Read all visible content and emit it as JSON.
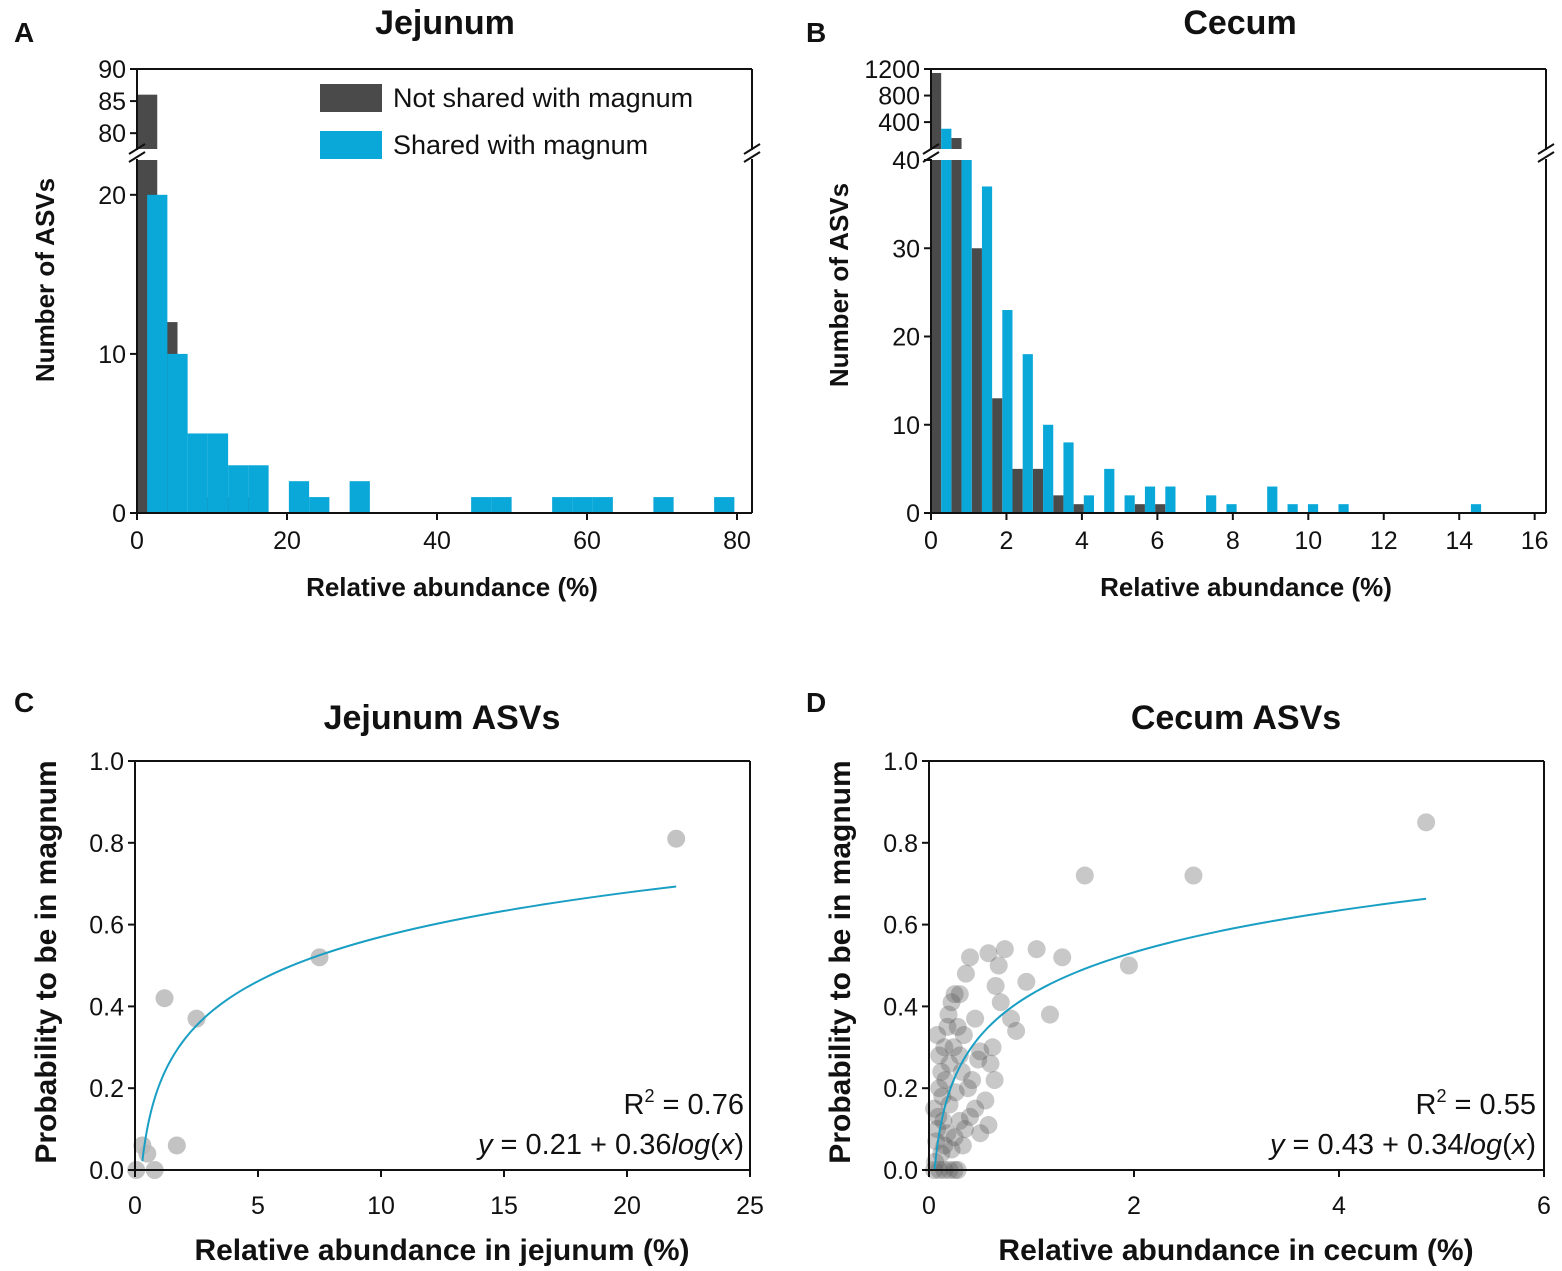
{
  "colors": {
    "not_shared": "#4a4a4a",
    "shared": "#0aa8d8",
    "fit_line": "#1a9fc4",
    "point_light": "#b8b8b8",
    "point_dark": "#555555"
  },
  "chart_data": [
    {
      "panel": "A",
      "type": "bar",
      "title": "Jejunum",
      "xlabel": "Relative abundance (%)",
      "ylabel": "Number of ASVs",
      "xlim": [
        0,
        82
      ],
      "xticks": [
        "0",
        "20",
        "40",
        "60",
        "80"
      ],
      "xtick_values": [
        0,
        20,
        40,
        60,
        80
      ],
      "ylim_lower": [
        0,
        22
      ],
      "ylim_upper": [
        78,
        90
      ],
      "yticks_lower": [
        "0",
        "10",
        "20"
      ],
      "yticks_lower_values": [
        0,
        10,
        20
      ],
      "yticks_upper": [
        "80",
        "85",
        "90"
      ],
      "yticks_upper_values": [
        80,
        85,
        90
      ],
      "bin_width": 2.7,
      "legend": [
        "Not shared with magnum",
        "Shared with magnum"
      ],
      "series": [
        {
          "name": "Not shared with magnum",
          "x": [
            0,
            2.7,
            8.1,
            10.8,
            13.5
          ],
          "values": [
            86,
            12,
            1,
            1,
            1
          ]
        },
        {
          "name": "Shared with magnum",
          "x": [
            1.35,
            4.05,
            6.75,
            9.45,
            12.15,
            14.85,
            20.25,
            22.95,
            28.35,
            44.55,
            47.25,
            55.35,
            58.05,
            60.75,
            68.85,
            76.95
          ],
          "values": [
            20,
            10,
            5,
            5,
            3,
            3,
            2,
            1,
            2,
            1,
            1,
            1,
            1,
            1,
            1,
            1
          ]
        }
      ]
    },
    {
      "panel": "B",
      "type": "bar",
      "title": "Cecum",
      "xlabel": "Relative abundance (%)",
      "ylabel": "Number of ASVs",
      "xlim": [
        0,
        16.3
      ],
      "xticks": [
        "0",
        "2",
        "4",
        "6",
        "8",
        "10",
        "12",
        "14",
        "16"
      ],
      "xtick_values": [
        0,
        2,
        4,
        6,
        8,
        10,
        12,
        14,
        16
      ],
      "ylim_lower": [
        0,
        40
      ],
      "ylim_upper": [
        40,
        1200
      ],
      "yticks_lower": [
        "0",
        "10",
        "20",
        "30",
        "40"
      ],
      "yticks_lower_values": [
        0,
        10,
        20,
        30,
        40
      ],
      "yticks_upper": [
        "400",
        "800",
        "1200"
      ],
      "yticks_upper_values": [
        400,
        800,
        1200
      ],
      "bin_width": 0.27,
      "series": [
        {
          "name": "Not shared with magnum",
          "x": [
            0,
            0.54,
            1.08,
            1.62,
            2.16,
            2.7,
            3.24,
            3.78,
            5.4,
            5.94
          ],
          "values": [
            1140,
            160,
            30,
            13,
            5,
            5,
            2,
            1,
            1,
            1
          ]
        },
        {
          "name": "Shared with magnum",
          "x": [
            0.27,
            0.81,
            1.35,
            1.89,
            2.43,
            2.97,
            3.51,
            4.05,
            4.59,
            5.13,
            5.67,
            6.21,
            7.29,
            7.83,
            8.91,
            9.45,
            9.99,
            10.8,
            14.31
          ],
          "values": [
            300,
            40,
            37,
            23,
            18,
            10,
            8,
            2,
            5,
            2,
            3,
            3,
            2,
            1,
            3,
            1,
            1,
            1,
            1
          ]
        }
      ]
    },
    {
      "panel": "C",
      "type": "scatter",
      "title": "Jejunum ASVs",
      "xlabel": "Relative abundance in jejunum (%)",
      "ylabel": "Probability to be in magnum",
      "xlim": [
        0,
        25
      ],
      "ylim": [
        0,
        1
      ],
      "xticks": [
        "0",
        "5",
        "10",
        "15",
        "20",
        "25"
      ],
      "xtick_values": [
        0,
        5,
        10,
        15,
        20,
        25
      ],
      "yticks": [
        "0.0",
        "0.2",
        "0.4",
        "0.6",
        "0.8",
        "1.0"
      ],
      "ytick_values": [
        0,
        0.2,
        0.4,
        0.6,
        0.8,
        1.0
      ],
      "points": [
        [
          0.05,
          0.0
        ],
        [
          0.3,
          0.06
        ],
        [
          0.5,
          0.04
        ],
        [
          0.8,
          0.0
        ],
        [
          1.2,
          0.42
        ],
        [
          1.7,
          0.06
        ],
        [
          2.5,
          0.37
        ],
        [
          7.5,
          0.52
        ],
        [
          22.0,
          0.81
        ]
      ],
      "fit": {
        "a": 0.21,
        "b": 0.36,
        "x_range": [
          0.3,
          22.0
        ]
      },
      "annotations": {
        "r2_prefix": "R",
        "r2_sup": "2",
        "r2_value": " = 0.76",
        "eq_y": "y",
        "eq_mid": " = 0.21 + 0.36",
        "eq_log": "log",
        "eq_open": "(",
        "eq_x": "x",
        "eq_close": ")"
      }
    },
    {
      "panel": "D",
      "type": "scatter",
      "title": "Cecum ASVs",
      "xlabel": "Relative abundance in cecum (%)",
      "ylabel": "Probability to be in magnum",
      "xlim": [
        0,
        6
      ],
      "ylim": [
        0,
        1
      ],
      "xticks": [
        "0",
        "2",
        "4",
        "6"
      ],
      "xtick_values": [
        0,
        2,
        4,
        6
      ],
      "yticks": [
        "0.0",
        "0.2",
        "0.4",
        "0.6",
        "0.8",
        "1.0"
      ],
      "ytick_values": [
        0,
        0.2,
        0.4,
        0.6,
        0.8,
        1.0
      ],
      "points": [
        [
          4.85,
          0.85
        ],
        [
          2.58,
          0.72
        ],
        [
          1.52,
          0.72
        ],
        [
          1.95,
          0.5
        ],
        [
          1.3,
          0.52
        ],
        [
          1.05,
          0.54
        ],
        [
          1.18,
          0.38
        ],
        [
          0.95,
          0.46
        ],
        [
          0.85,
          0.34
        ],
        [
          0.8,
          0.37
        ],
        [
          0.74,
          0.54
        ],
        [
          0.68,
          0.5
        ],
        [
          0.58,
          0.53
        ],
        [
          0.65,
          0.45
        ],
        [
          0.7,
          0.41
        ],
        [
          0.4,
          0.52
        ],
        [
          0.36,
          0.48
        ],
        [
          0.3,
          0.43
        ],
        [
          0.25,
          0.43
        ],
        [
          0.22,
          0.41
        ],
        [
          0.45,
          0.37
        ],
        [
          0.34,
          0.33
        ],
        [
          0.5,
          0.29
        ],
        [
          0.62,
          0.3
        ],
        [
          0.6,
          0.26
        ],
        [
          0.64,
          0.22
        ],
        [
          0.55,
          0.17
        ],
        [
          0.58,
          0.11
        ],
        [
          0.45,
          0.15
        ],
        [
          0.38,
          0.2
        ],
        [
          0.3,
          0.28
        ],
        [
          0.2,
          0.26
        ],
        [
          0.15,
          0.3
        ],
        [
          0.18,
          0.35
        ],
        [
          0.12,
          0.24
        ],
        [
          0.08,
          0.33
        ],
        [
          0.1,
          0.2
        ],
        [
          0.05,
          0.15
        ],
        [
          0.08,
          0.1
        ],
        [
          0.14,
          0.12
        ],
        [
          0.2,
          0.16
        ],
        [
          0.25,
          0.08
        ],
        [
          0.3,
          0.12
        ],
        [
          0.35,
          0.1
        ],
        [
          0.4,
          0.13
        ],
        [
          0.22,
          0.05
        ],
        [
          0.15,
          0.06
        ],
        [
          0.06,
          0.02
        ],
        [
          0.1,
          0.0
        ],
        [
          0.15,
          0.0
        ],
        [
          0.2,
          0.0
        ],
        [
          0.25,
          0.0
        ],
        [
          0.28,
          0.0
        ],
        [
          0.05,
          0.0
        ],
        [
          0.12,
          0.04
        ],
        [
          0.18,
          0.09
        ],
        [
          0.26,
          0.19
        ],
        [
          0.32,
          0.24
        ],
        [
          0.42,
          0.22
        ],
        [
          0.48,
          0.27
        ],
        [
          0.1,
          0.28
        ],
        [
          0.13,
          0.18
        ],
        [
          0.07,
          0.07
        ],
        [
          0.24,
          0.3
        ],
        [
          0.16,
          0.22
        ],
        [
          0.09,
          0.13
        ],
        [
          0.33,
          0.06
        ],
        [
          0.5,
          0.09
        ],
        [
          0.19,
          0.38
        ],
        [
          0.28,
          0.35
        ]
      ],
      "fit": {
        "a": 0.43,
        "b": 0.34,
        "x_range": [
          0.05,
          4.85
        ]
      },
      "annotations": {
        "r2_prefix": "R",
        "r2_sup": "2",
        "r2_value": " = 0.55",
        "eq_y": "y",
        "eq_mid": " = 0.43 + 0.34",
        "eq_log": "log",
        "eq_open": "(",
        "eq_x": "x",
        "eq_close": ")"
      }
    }
  ]
}
